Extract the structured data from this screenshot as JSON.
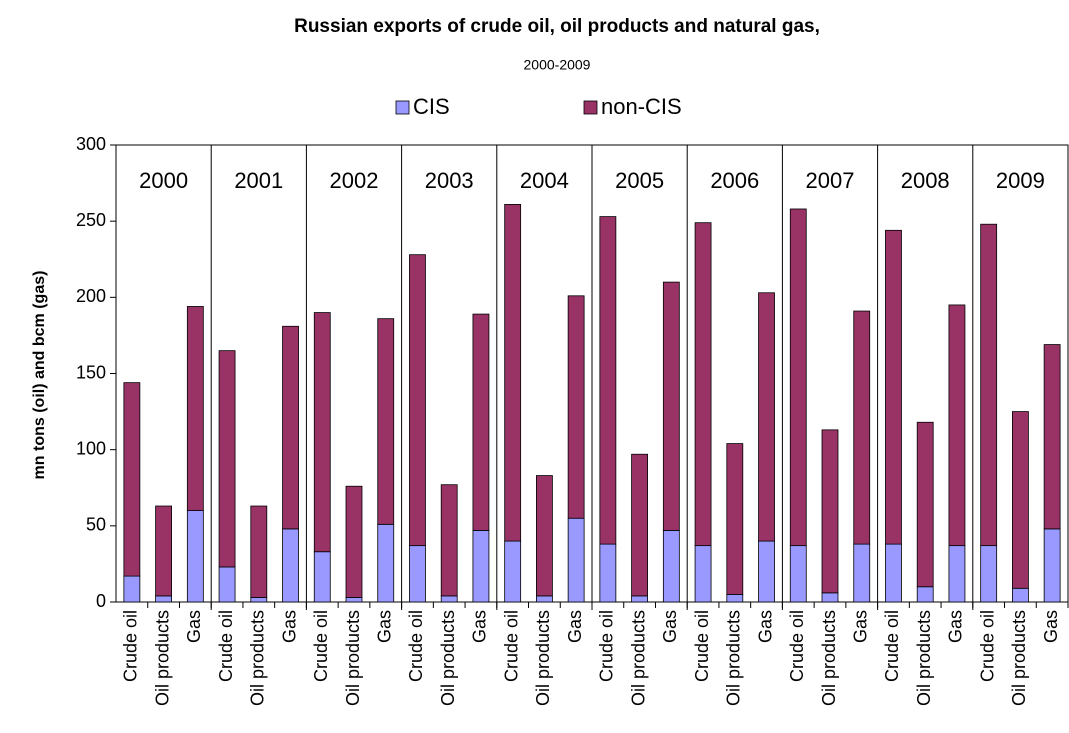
{
  "chart_data": {
    "type": "stacked_bar",
    "title": "Russian exports of crude oil, oil products and natural gas,",
    "subtitle": "2000-2009",
    "y_label": "mn tons (oil) and bcm (gas)",
    "groups": [
      "2000",
      "2001",
      "2002",
      "2003",
      "2004",
      "2005",
      "2006",
      "2007",
      "2008",
      "2009"
    ],
    "categories": [
      "Crude oil",
      "Oil products",
      "Gas",
      "Crude oil",
      "Oil products",
      "Gas",
      "Crude oil",
      "Oil products",
      "Gas",
      "Crude oil",
      "Oil products",
      "Gas",
      "Crude oil",
      "Oil products",
      "Gas",
      "Crude oil",
      "Oil products",
      "Gas",
      "Crude oil",
      "Oil products",
      "Gas",
      "Crude oil",
      "Oil products",
      "Gas",
      "Crude oil",
      "Oil products",
      "Gas",
      "Crude oil",
      "Oil products",
      "Gas"
    ],
    "series": [
      {
        "name": "CIS",
        "color": "#9999ff",
        "values": [
          17,
          4,
          60,
          23,
          3,
          48,
          33,
          3,
          51,
          37,
          4,
          47,
          40,
          4,
          55,
          38,
          4,
          47,
          37,
          5,
          40,
          37,
          6,
          38,
          38,
          10,
          37,
          37,
          9,
          48
        ]
      },
      {
        "name": "non-CIS",
        "color": "#993366",
        "values": [
          127,
          59,
          134,
          142,
          60,
          133,
          157,
          73,
          135,
          191,
          73,
          142,
          221,
          79,
          146,
          215,
          93,
          163,
          212,
          99,
          163,
          221,
          107,
          153,
          206,
          108,
          158,
          211,
          116,
          121
        ]
      }
    ],
    "ylim": [
      0,
      300
    ],
    "yticks": [
      0,
      50,
      100,
      150,
      200,
      250,
      300
    ],
    "grid": false,
    "legend": "top"
  }
}
